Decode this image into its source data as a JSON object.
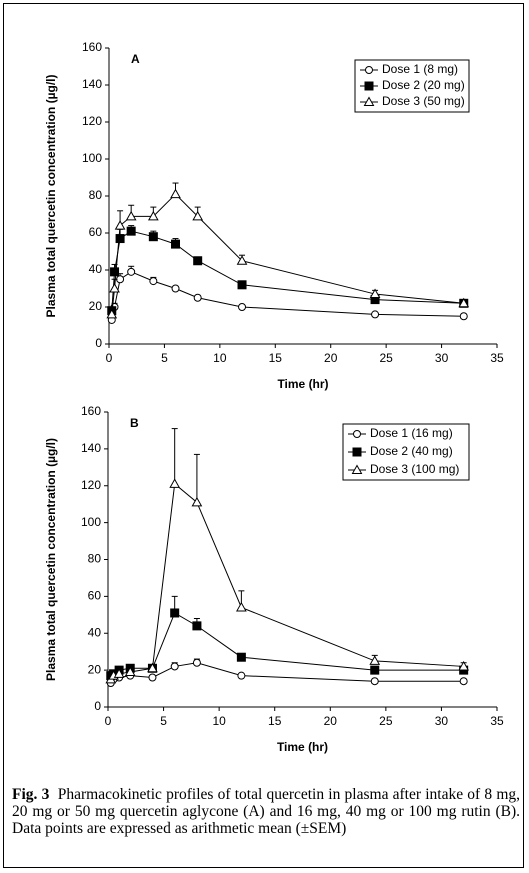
{
  "chart_data": [
    {
      "type": "line",
      "panel": "A",
      "x_label": "Time (hr)",
      "y_label": "Plasma total quercetin concentration (µg/l)",
      "x": [
        0.25,
        0.5,
        1,
        2,
        4,
        6,
        8,
        12,
        24,
        32
      ],
      "xlim": [
        0,
        35
      ],
      "xticks": [
        0,
        5,
        10,
        15,
        20,
        25,
        30,
        35
      ],
      "ylim": [
        0,
        160
      ],
      "yticks": [
        0,
        20,
        40,
        60,
        80,
        100,
        120,
        140,
        160
      ],
      "legend": "upper right",
      "series": [
        {
          "name": "Dose 1 (8 mg)",
          "color": "#000000",
          "marker": "circle",
          "values": [
            13,
            20,
            35,
            39,
            34,
            30,
            25,
            20,
            16,
            15
          ],
          "errors": [
            1,
            2,
            3,
            3,
            2,
            1,
            1,
            1,
            1,
            1
          ]
        },
        {
          "name": "Dose 2 (20 mg)",
          "color": "#000000",
          "marker": "square",
          "values": [
            18,
            39,
            57,
            61,
            58,
            54,
            45,
            32,
            24,
            22
          ],
          "errors": [
            2,
            4,
            5,
            3,
            3,
            3,
            2,
            1,
            1,
            1
          ]
        },
        {
          "name": "Dose 3 (50 mg)",
          "color": "#000000",
          "marker": "triangle",
          "values": [
            16,
            30,
            64,
            69,
            69,
            81,
            69,
            45,
            27,
            22
          ],
          "errors": [
            2,
            5,
            8,
            6,
            5,
            6,
            5,
            3,
            2,
            1
          ]
        }
      ]
    },
    {
      "type": "line",
      "panel": "B",
      "x_label": "Time (hr)",
      "y_label": "Plasma total quercetin concentration (µg/l)",
      "x": [
        0.25,
        0.5,
        1,
        2,
        4,
        6,
        8,
        12,
        24,
        32
      ],
      "xlim": [
        0,
        35
      ],
      "xticks": [
        0,
        5,
        10,
        15,
        20,
        25,
        30,
        35
      ],
      "ylim": [
        0,
        160
      ],
      "yticks": [
        0,
        20,
        40,
        60,
        80,
        100,
        120,
        140,
        160
      ],
      "legend": "upper right",
      "series": [
        {
          "name": "Dose 1 (16 mg)",
          "color": "#000000",
          "marker": "circle",
          "values": [
            13,
            15,
            16,
            17,
            16,
            22,
            24,
            17,
            14,
            14
          ],
          "errors": [
            1,
            1,
            1,
            1,
            1,
            2,
            2,
            1,
            1,
            1
          ]
        },
        {
          "name": "Dose 2 (40 mg)",
          "color": "#000000",
          "marker": "square",
          "values": [
            17,
            18,
            20,
            21,
            21,
            51,
            44,
            27,
            20,
            20
          ],
          "errors": [
            1,
            1,
            1,
            1,
            1,
            9,
            4,
            2,
            1,
            1
          ]
        },
        {
          "name": "Dose 3 (100 mg)",
          "color": "#000000",
          "marker": "triangle",
          "values": [
            15,
            17,
            18,
            19,
            21,
            121,
            111,
            54,
            25,
            22
          ],
          "errors": [
            1,
            1,
            1,
            1,
            1,
            30,
            26,
            9,
            3,
            2
          ]
        }
      ]
    }
  ],
  "caption": {
    "label": "Fig. 3",
    "text": "Pharmacokinetic profiles of total quercetin in plasma after intake of 8 mg, 20 mg or 50 mg quercetin aglycone (A) and 16 mg, 40 mg or 100 mg rutin (B). Data points are expressed as arithmetic mean (±SEM)"
  }
}
